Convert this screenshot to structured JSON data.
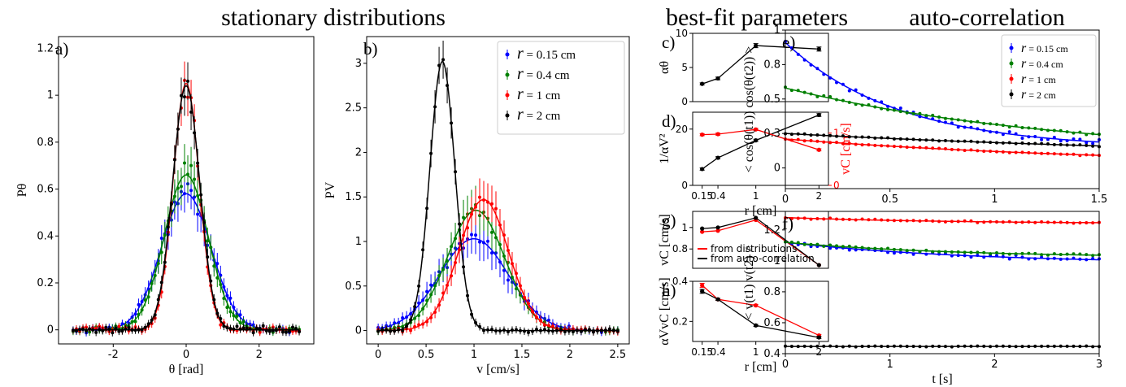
{
  "section_titles": {
    "stationary": "stationary distributions",
    "bestfit": "best-fit parameters",
    "autocorr": "auto-correlation"
  },
  "colors": {
    "r015": "#0000ff",
    "r04": "#008000",
    "r1": "#ff0000",
    "r2": "#000000"
  },
  "legend_r": [
    {
      "sym": "r",
      "text": " = 0.15 cm",
      "color": "#0000ff"
    },
    {
      "sym": "r",
      "text": " = 0.4 cm",
      "color": "#008000"
    },
    {
      "sym": "r",
      "text": " = 1 cm",
      "color": "#ff0000"
    },
    {
      "sym": "r",
      "text": " = 2 cm",
      "color": "#000000"
    }
  ],
  "chart_data": [
    {
      "id": "a",
      "panel_label": "a)",
      "type": "scatter",
      "xlabel": "θ [rad]",
      "ylabel": "Pθ",
      "xlim": [
        -3.5,
        3.5
      ],
      "ylim": [
        -0.06,
        1.25
      ],
      "xticks": [
        -2,
        0,
        2
      ],
      "yticks": [
        0.0,
        0.2,
        0.4,
        0.6,
        0.8,
        1.0,
        1.2
      ],
      "series": [
        {
          "name": "r = 0.15 cm",
          "color": "#0000ff",
          "model": "gauss",
          "params": {
            "amp": 0.58,
            "mu": 0,
            "sigma": 0.68
          },
          "noise": 0.04,
          "x_range": [
            -3.1,
            3.1
          ],
          "n": 70
        },
        {
          "name": "r = 0.4 cm",
          "color": "#008000",
          "model": "gauss",
          "params": {
            "amp": 0.66,
            "mu": 0,
            "sigma": 0.6
          },
          "noise": 0.04,
          "x_range": [
            -3.1,
            3.1
          ],
          "n": 70
        },
        {
          "name": "r = 1 cm",
          "color": "#ff0000",
          "model": "gauss",
          "params": {
            "amp": 1.05,
            "mu": 0,
            "sigma": 0.36
          },
          "noise": 0.05,
          "x_range": [
            -3.1,
            3.1
          ],
          "n": 70
        },
        {
          "name": "r = 2 cm",
          "color": "#000000",
          "model": "gauss",
          "params": {
            "amp": 1.04,
            "mu": 0,
            "sigma": 0.37
          },
          "noise": 0.04,
          "x_range": [
            -3.1,
            3.1
          ],
          "n": 70
        }
      ]
    },
    {
      "id": "b",
      "panel_label": "b)",
      "type": "scatter",
      "xlabel": "v [cm/s]",
      "ylabel": "PV",
      "xlim": [
        -0.12,
        2.62
      ],
      "ylim": [
        -0.15,
        3.3
      ],
      "xticks": [
        0.0,
        0.5,
        1.0,
        1.5,
        2.0,
        2.5
      ],
      "yticks": [
        0.0,
        0.5,
        1.0,
        1.5,
        2.0,
        2.5,
        3.0
      ],
      "series": [
        {
          "name": "r = 0.15 cm",
          "color": "#0000ff",
          "model": "gauss",
          "params": {
            "amp": 1.03,
            "mu": 1.0,
            "sigma": 0.36
          },
          "noise": 0.06,
          "x_range": [
            0.0,
            2.5
          ],
          "n": 60
        },
        {
          "name": "r = 0.4 cm",
          "color": "#008000",
          "model": "gauss",
          "params": {
            "amp": 1.35,
            "mu": 1.02,
            "sigma": 0.3
          },
          "noise": 0.06,
          "x_range": [
            0.0,
            2.5
          ],
          "n": 60
        },
        {
          "name": "r = 1 cm",
          "color": "#ff0000",
          "model": "gauss",
          "params": {
            "amp": 1.47,
            "mu": 1.1,
            "sigma": 0.26
          },
          "noise": 0.06,
          "x_range": [
            0.0,
            2.5
          ],
          "n": 60
        },
        {
          "name": "r = 2 cm",
          "color": "#000000",
          "model": "gauss",
          "params": {
            "amp": 3.02,
            "mu": 0.67,
            "sigma": 0.13
          },
          "noise": 0.06,
          "x_range": [
            0.0,
            2.5
          ],
          "n": 60
        }
      ]
    },
    {
      "id": "c",
      "panel_label": "c)",
      "type": "line",
      "ylabel": "αθ",
      "xlim": [
        0.0,
        2.15
      ],
      "ylim": [
        0,
        10
      ],
      "yticks": [
        0,
        5,
        10
      ],
      "series": [
        {
          "color": "#000000",
          "x": [
            0.15,
            0.4,
            1,
            2
          ],
          "y": [
            2.6,
            3.4,
            8.2,
            7.7
          ],
          "err": [
            0.15,
            0.2,
            0.3,
            0.3
          ]
        }
      ]
    },
    {
      "id": "d",
      "panel_label": "d)",
      "type": "line",
      "xlabel": "r [cm]",
      "ylabel": "1/αV²",
      "ylabel_right": "vC [cm/s]",
      "xlim": [
        0.0,
        2.15
      ],
      "ylim": [
        0,
        26
      ],
      "ylim_right": [
        0,
        1.4
      ],
      "xticks": [
        0.15,
        0.4,
        1,
        2
      ],
      "xticklabels": [
        "0.15",
        "0.4",
        "1",
        "2"
      ],
      "yticks": [
        0,
        20
      ],
      "yticks_right": [
        0,
        1
      ],
      "series": [
        {
          "color": "#000000",
          "axis": "left",
          "x": [
            0.15,
            0.4,
            1,
            2
          ],
          "y": [
            5.8,
            9.8,
            16.0,
            25.0
          ],
          "err": [
            0.4,
            0.4,
            0.4,
            0.5
          ]
        },
        {
          "color": "#ff0000",
          "axis": "right",
          "x": [
            0.15,
            0.4,
            1,
            2
          ],
          "y": [
            0.97,
            0.98,
            1.07,
            0.68
          ],
          "err": [
            0.02,
            0.02,
            0.02,
            0.02
          ]
        }
      ]
    },
    {
      "id": "g",
      "panel_label": "g)",
      "type": "line",
      "ylabel": "vC [cm/s]",
      "xlim": [
        0.0,
        2.15
      ],
      "ylim": [
        0.62,
        1.15
      ],
      "yticks": [
        0.8,
        1.0
      ],
      "series": [
        {
          "name": "from distributions",
          "color": "#ff0000",
          "x": [
            0.15,
            0.4,
            1,
            2
          ],
          "y": [
            0.96,
            0.97,
            1.07,
            0.65
          ]
        },
        {
          "name": "from auto-correlation",
          "color": "#000000",
          "x": [
            0.15,
            0.4,
            1,
            2
          ],
          "y": [
            0.99,
            1.0,
            1.09,
            0.65
          ]
        }
      ]
    },
    {
      "id": "h",
      "panel_label": "h)",
      "type": "line",
      "xlabel": "r [cm]",
      "ylabel": "αVvC [cm/s]",
      "xlim": [
        0.0,
        2.15
      ],
      "ylim": [
        0.1,
        0.4
      ],
      "xticks": [
        0.15,
        0.4,
        1,
        2
      ],
      "xticklabels": [
        "0.15",
        "0.4",
        "1",
        "2"
      ],
      "yticks": [
        0.2,
        0.4
      ],
      "series": [
        {
          "color": "#ff0000",
          "x": [
            0.15,
            0.4,
            1,
            2
          ],
          "y": [
            0.38,
            0.31,
            0.28,
            0.13
          ],
          "err": [
            0.01,
            0.005,
            0.005,
            0.005
          ]
        },
        {
          "color": "#000000",
          "x": [
            0.15,
            0.4,
            1,
            2
          ],
          "y": [
            0.35,
            0.31,
            0.18,
            0.12
          ],
          "err": [
            0.01,
            0.005,
            0.005,
            0.005
          ]
        }
      ]
    },
    {
      "id": "e",
      "panel_label": "e)",
      "type": "scatter",
      "ylabel": "< cos(θ(t1)) cos(θ(t2)) >",
      "xlim": [
        0,
        1.5
      ],
      "ylim": [
        -0.15,
        1.0
      ],
      "xticks": [
        0.0,
        0.5,
        1.0,
        1.5
      ],
      "yticks": [
        0.0,
        0.25,
        0.5,
        0.75,
        1.0
      ],
      "series": [
        {
          "name": "r = 0.15 cm",
          "color": "#0000ff",
          "model": "exp",
          "params": {
            "a": 0.77,
            "k": 1.85,
            "c": 0.14
          },
          "noise": 0.018,
          "x_range": [
            0,
            1.5
          ],
          "n": 50
        },
        {
          "name": "r = 0.4 cm",
          "color": "#008000",
          "model": "exp",
          "params": {
            "a": 0.5,
            "k": 0.75,
            "c": 0.08
          },
          "noise": 0.008,
          "x_range": [
            0,
            1.5
          ],
          "n": 50
        },
        {
          "name": "r = 1 cm",
          "color": "#ff0000",
          "model": "exp",
          "params": {
            "a": 0.2,
            "k": 0.6,
            "c": 0.01
          },
          "noise": 0.004,
          "x_range": [
            0,
            1.5
          ],
          "n": 50
        },
        {
          "name": "r = 2 cm",
          "color": "#000000",
          "model": "exp",
          "params": {
            "a": 0.2,
            "k": 0.4,
            "c": 0.05
          },
          "noise": 0.004,
          "x_range": [
            0,
            1.5
          ],
          "n": 50
        }
      ]
    },
    {
      "id": "f",
      "panel_label": "f)",
      "type": "scatter",
      "xlabel": "t [s]",
      "ylabel": "< v(t1) v(t2) >",
      "xlim": [
        0,
        3
      ],
      "ylim": [
        0.4,
        1.32
      ],
      "xticks": [
        0,
        1,
        2,
        3
      ],
      "yticks": [
        0.4,
        0.6,
        0.8,
        1.0,
        1.2
      ],
      "series": [
        {
          "name": "r = 0.15 cm",
          "color": "#0000ff",
          "model": "exp",
          "params": {
            "a": 0.14,
            "k": 0.55,
            "c": 0.98
          },
          "noise": 0.012,
          "x_range": [
            0,
            3
          ],
          "n": 50
        },
        {
          "name": "r = 0.4 cm",
          "color": "#008000",
          "model": "exp",
          "params": {
            "a": 0.1,
            "k": 0.6,
            "c": 1.02
          },
          "noise": 0.006,
          "x_range": [
            0,
            3
          ],
          "n": 50
        },
        {
          "name": "r = 1 cm",
          "color": "#ff0000",
          "model": "exp",
          "params": {
            "a": 0.04,
            "k": 0.6,
            "c": 1.24
          },
          "noise": 0.005,
          "x_range": [
            0,
            3
          ],
          "n": 50
        },
        {
          "name": "r = 2 cm",
          "color": "#000000",
          "model": "exp",
          "params": {
            "a": 0.0,
            "k": 1,
            "c": 0.447
          },
          "noise": 0.003,
          "x_range": [
            0,
            3
          ],
          "n": 50
        }
      ]
    }
  ]
}
